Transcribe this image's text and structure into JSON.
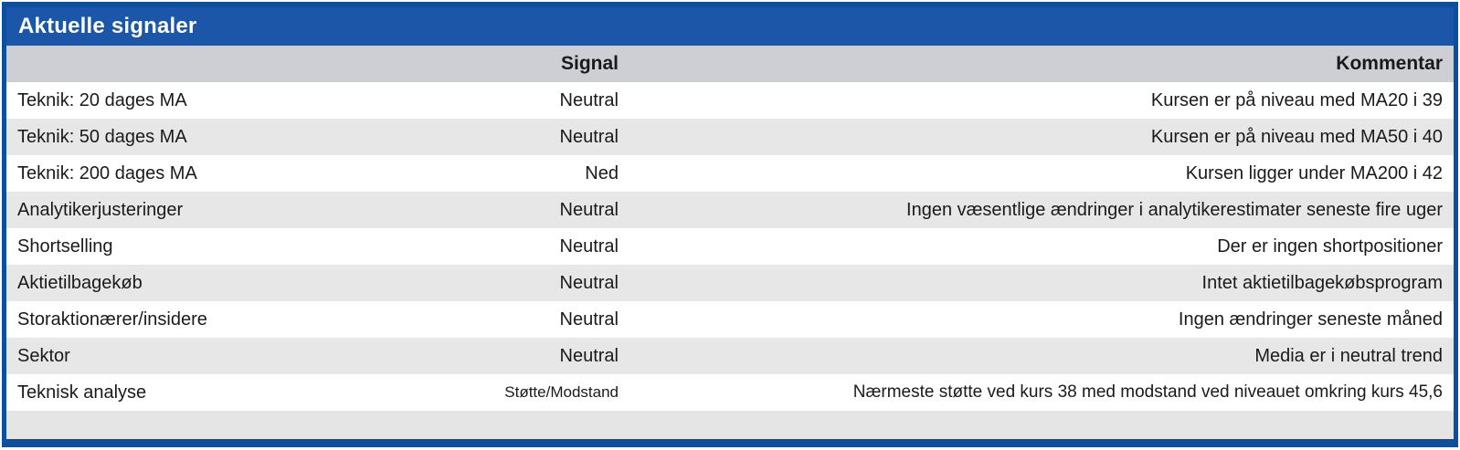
{
  "panel": {
    "title": "Aktuelle signaler"
  },
  "table": {
    "columns": {
      "label": "",
      "signal": "Signal",
      "comment": "Kommentar"
    },
    "rows": [
      {
        "label": "Teknik: 20 dages MA",
        "signal": "Neutral",
        "comment": "Kursen er på niveau med MA20 i 39"
      },
      {
        "label": "Teknik: 50 dages MA",
        "signal": "Neutral",
        "comment": "Kursen er på niveau med MA50 i 40"
      },
      {
        "label": "Teknik: 200 dages MA",
        "signal": "Ned",
        "comment": "Kursen ligger under MA200 i 42"
      },
      {
        "label": "Analytikerjusteringer",
        "signal": "Neutral",
        "comment": "Ingen væsentlige ændringer i analytikerestimater seneste fire uger"
      },
      {
        "label": "Shortselling",
        "signal": "Neutral",
        "comment": "Der er ingen shortpositioner"
      },
      {
        "label": "Aktietilbagekøb",
        "signal": "Neutral",
        "comment": "Intet aktietilbagekøbsprogram"
      },
      {
        "label": "Storaktionærer/insidere",
        "signal": "Neutral",
        "comment": "Ingen ændringer seneste måned"
      },
      {
        "label": "Sektor",
        "signal": "Neutral",
        "comment": "Media er i neutral trend"
      },
      {
        "label": "Teknisk analyse",
        "signal": "Støtte/Modstand",
        "comment": "Nærmeste støtte ved kurs 38 med modstand ved niveauet omkring kurs 45,6"
      }
    ]
  },
  "colors": {
    "border_blue": "#0A4FA0",
    "titlebar_blue": "#1B56A8",
    "header_gray": "#CDCFD5",
    "row_alt_gray": "#E7E7E7",
    "footer_gray": "#E5E5E5",
    "text_color": "#1A1A1A"
  }
}
